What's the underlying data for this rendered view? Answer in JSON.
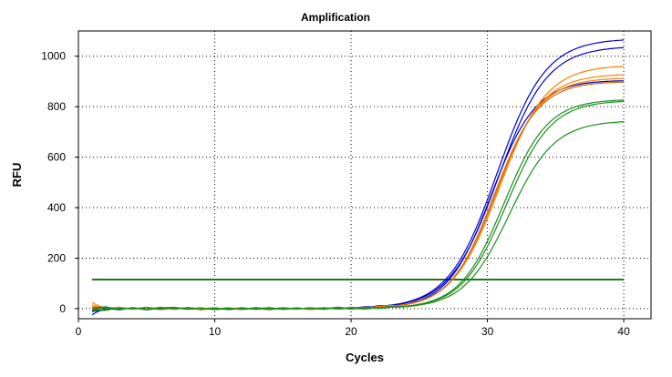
{
  "chart_data": {
    "type": "line",
    "title": "Amplification",
    "xlabel": "Cycles",
    "ylabel": "RFU",
    "xlim": [
      0,
      42
    ],
    "ylim": [
      -40,
      1100
    ],
    "xticks": [
      0,
      10,
      20,
      30,
      40
    ],
    "yticks": [
      0,
      200,
      400,
      600,
      800,
      1000
    ],
    "grid": true,
    "threshold": {
      "value": 115,
      "x": [
        1,
        40
      ],
      "color": "#1a7a1a"
    },
    "noise": [
      [
        0,
        6,
        -3,
        4,
        -5,
        2,
        5,
        -2,
        3,
        -4,
        1,
        -3,
        4,
        -2,
        3,
        -1,
        2,
        -3,
        4,
        -2,
        3,
        -2,
        1
      ],
      [
        0,
        -3,
        5,
        -2,
        4,
        -4,
        2,
        3,
        -5,
        2,
        -2,
        4,
        -3,
        1,
        -2,
        3,
        -4,
        2,
        -1,
        3,
        -2,
        4,
        -3
      ],
      [
        0,
        4,
        -2,
        3,
        -3,
        5,
        -2,
        4,
        -1,
        3,
        -4,
        2,
        -2,
        4,
        -3,
        2,
        -1,
        3,
        -2,
        1,
        -3,
        2,
        4
      ],
      [
        0,
        -4,
        3,
        -1,
        5,
        -2,
        4,
        -3,
        2,
        -2,
        3,
        -3,
        1,
        -4,
        2,
        -2,
        3,
        -1,
        4,
        -3,
        2,
        -1,
        3
      ]
    ],
    "series": [
      {
        "color": "#0000cc",
        "plateau": 1070,
        "midpoint": 30.7,
        "slope": 0.56,
        "start": -25,
        "noise": 0
      },
      {
        "color": "#0000cc",
        "plateau": 1040,
        "midpoint": 30.8,
        "slope": 0.56,
        "start": -12,
        "noise": 1
      },
      {
        "color": "#0000cc",
        "plateau": 905,
        "midpoint": 30.3,
        "slope": 0.62,
        "start": -5,
        "noise": 2
      },
      {
        "color": "#ff8000",
        "plateau": 965,
        "midpoint": 30.9,
        "slope": 0.58,
        "start": 25,
        "noise": 3
      },
      {
        "color": "#ff8000",
        "plateau": 930,
        "midpoint": 30.7,
        "slope": 0.6,
        "start": 15,
        "noise": 1
      },
      {
        "color": "#ff8000",
        "plateau": 915,
        "midpoint": 30.6,
        "slope": 0.61,
        "start": 8,
        "noise": 2
      },
      {
        "color": "#cc6600",
        "plateau": 900,
        "midpoint": 30.5,
        "slope": 0.62,
        "start": 0,
        "noise": 0
      },
      {
        "color": "#1a8c1a",
        "plateau": 830,
        "midpoint": 31.2,
        "slope": 0.62,
        "start": -8,
        "noise": 3
      },
      {
        "color": "#1a8c1a",
        "plateau": 825,
        "midpoint": 31.4,
        "slope": 0.61,
        "start": 4,
        "noise": 0
      },
      {
        "color": "#1a8c1a",
        "plateau": 745,
        "midpoint": 31.6,
        "slope": 0.6,
        "start": -4,
        "noise": 2
      }
    ]
  }
}
